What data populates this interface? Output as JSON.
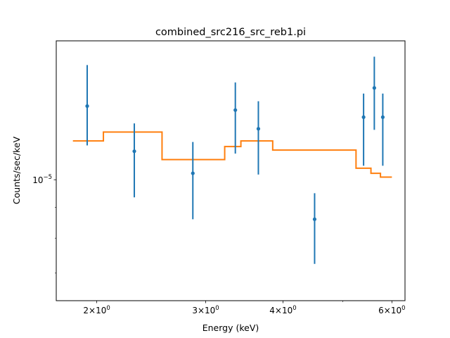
{
  "chart_data": {
    "type": "scatter",
    "title": "combined_src216_src_reb1.pi",
    "xlabel": "Energy (keV)",
    "ylabel": "Counts/sec/keV",
    "xscale": "log",
    "yscale": "log",
    "xlim": [
      1.72,
      6.3
    ],
    "ylim": [
      6.3e-06,
      1.7e-05
    ],
    "x_tick_labels": [
      {
        "value": 2,
        "base": "2×10",
        "exp": "0"
      },
      {
        "value": 3,
        "base": "3×10",
        "exp": "0"
      },
      {
        "value": 4,
        "base": "4×10",
        "exp": "0"
      },
      {
        "value": 6,
        "base": "6×10",
        "exp": "0"
      }
    ],
    "y_tick_labels": [
      {
        "value": 1e-05,
        "base": "10",
        "exp": "−5"
      }
    ],
    "series": [
      {
        "type": "errorbar",
        "color": "#1f77b4",
        "points": [
          {
            "x": 1.93,
            "y": 1.325e-05,
            "ylo": 1.14e-05,
            "yhi": 1.55e-05
          },
          {
            "x": 2.3,
            "y": 1.115e-05,
            "ylo": 9.35e-06,
            "yhi": 1.24e-05
          },
          {
            "x": 2.86,
            "y": 1.025e-05,
            "ylo": 8.6e-06,
            "yhi": 1.155e-05
          },
          {
            "x": 3.35,
            "y": 1.305e-05,
            "ylo": 1.105e-05,
            "yhi": 1.45e-05
          },
          {
            "x": 3.65,
            "y": 1.215e-05,
            "ylo": 1.02e-05,
            "yhi": 1.35e-05
          },
          {
            "x": 4.5,
            "y": 8.6e-06,
            "ylo": 7.25e-06,
            "yhi": 9.5e-06
          },
          {
            "x": 5.4,
            "y": 1.27e-05,
            "ylo": 1.055e-05,
            "yhi": 1.39e-05
          },
          {
            "x": 5.62,
            "y": 1.42e-05,
            "ylo": 1.21e-05,
            "yhi": 1.6e-05
          },
          {
            "x": 5.8,
            "y": 1.27e-05,
            "ylo": 1.055e-05,
            "yhi": 1.39e-05
          }
        ]
      },
      {
        "type": "step",
        "color": "#ff7f0e",
        "bins": [
          {
            "x0": 1.83,
            "x1": 2.05,
            "y": 1.16e-05
          },
          {
            "x0": 2.05,
            "x1": 2.55,
            "y": 1.2e-05
          },
          {
            "x0": 2.55,
            "x1": 3.22,
            "y": 1.08e-05
          },
          {
            "x0": 3.22,
            "x1": 3.42,
            "y": 1.135e-05
          },
          {
            "x0": 3.42,
            "x1": 3.85,
            "y": 1.16e-05
          },
          {
            "x0": 3.85,
            "x1": 5.25,
            "y": 1.12e-05
          },
          {
            "x0": 5.25,
            "x1": 5.55,
            "y": 1.045e-05
          },
          {
            "x0": 5.55,
            "x1": 5.75,
            "y": 1.025e-05
          },
          {
            "x0": 5.75,
            "x1": 6.0,
            "y": 1.01e-05
          }
        ]
      }
    ]
  }
}
